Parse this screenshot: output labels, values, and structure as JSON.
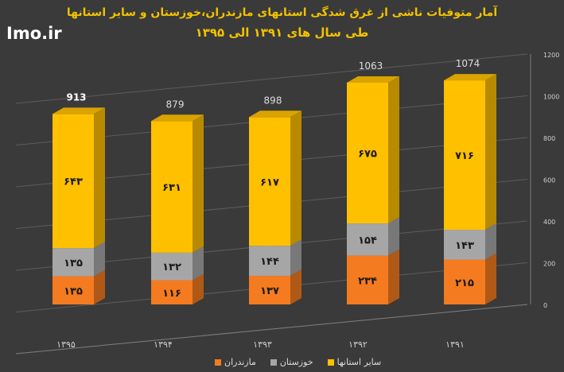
{
  "watermark": "Imo.ir",
  "chart_data": {
    "type": "bar",
    "stacked": true,
    "title": "آمار متوفیات ناشی از غرق شدگی استانهای مازندران،خوزستان و سایر استانها",
    "subtitle": "طی سال های ۱۳۹۱ الی ۱۳۹۵",
    "categories": [
      "۱۳۹۵",
      "۱۳۹۴",
      "۱۳۹۳",
      "۱۳۹۲",
      "۱۳۹۱"
    ],
    "series": [
      {
        "name": "مازندران",
        "values": [
          135,
          116,
          137,
          234,
          215
        ],
        "labels": [
          "۱۳۵",
          "۱۱۶",
          "۱۳۷",
          "۲۳۴",
          "۲۱۵"
        ],
        "color": "#f47b20"
      },
      {
        "name": "خوزستان",
        "values": [
          135,
          132,
          144,
          154,
          143
        ],
        "labels": [
          "۱۳۵",
          "۱۳۲",
          "۱۴۴",
          "۱۵۴",
          "۱۴۳"
        ],
        "color": "#a6a6a6"
      },
      {
        "name": "سایر استانها",
        "values": [
          643,
          631,
          617,
          675,
          716
        ],
        "labels": [
          "۶۴۳",
          "۶۳۱",
          "۶۱۷",
          "۶۷۵",
          "۷۱۶"
        ],
        "color": "#ffc000"
      }
    ],
    "totals": [
      913,
      879,
      898,
      1063,
      1074
    ],
    "total_labels": [
      "913",
      "879",
      "898",
      "1063",
      "1074"
    ],
    "ylim": [
      0,
      1200
    ],
    "yticks": [
      0,
      200,
      400,
      600,
      800,
      1000,
      1200
    ],
    "ytick_labels": [
      "0",
      "200",
      "400",
      "600",
      "800",
      "1000",
      "1200"
    ],
    "legend_position": "bottom-center",
    "grid": true
  }
}
